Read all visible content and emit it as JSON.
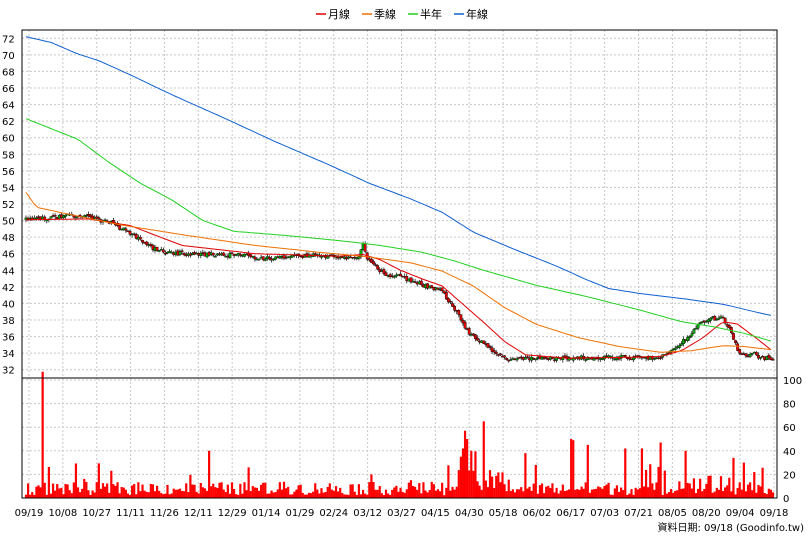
{
  "chart_data": {
    "type": "candlestick",
    "legend": {
      "placement": "top-center",
      "items": [
        {
          "label": "月線",
          "color": "#e00000"
        },
        {
          "label": "季線",
          "color": "#f07000"
        },
        {
          "label": "半年",
          "color": "#20d020"
        },
        {
          "label": "年線",
          "color": "#1060d0"
        }
      ]
    },
    "price_axis": {
      "range": [
        31,
        73
      ],
      "ticks": [
        32,
        34,
        36,
        38,
        40,
        42,
        44,
        46,
        48,
        50,
        52,
        54,
        56,
        58,
        60,
        62,
        64,
        66,
        68,
        70,
        72
      ],
      "side": "left"
    },
    "volume_axis": {
      "range": [
        0,
        100
      ],
      "ticks": [
        0,
        20,
        40,
        60,
        80,
        100
      ],
      "side": "right"
    },
    "x_ticks": [
      "09/19",
      "10/08",
      "10/27",
      "11/11",
      "11/26",
      "12/11",
      "12/29",
      "01/14",
      "01/29",
      "02/24",
      "03/12",
      "03/27",
      "04/15",
      "04/30",
      "05/18",
      "06/02",
      "06/17",
      "07/03",
      "07/21",
      "08/05",
      "08/20",
      "09/04",
      "09/18"
    ],
    "grid": true,
    "up_color": "#00b000",
    "down_color": "#e00000",
    "volume_color": "#ff0000",
    "footer": "資料日期: 09/18  (Goodinfo.tw)",
    "close_anchors": [
      [
        0,
        50.2
      ],
      [
        10,
        50.3
      ],
      [
        20,
        50.6
      ],
      [
        30,
        50.4
      ],
      [
        40,
        49.8
      ],
      [
        50,
        48.5
      ],
      [
        58,
        47.0
      ],
      [
        66,
        46.3
      ],
      [
        75,
        46.0
      ],
      [
        90,
        45.9
      ],
      [
        105,
        45.8
      ],
      [
        115,
        45.4
      ],
      [
        125,
        45.6
      ],
      [
        140,
        45.8
      ],
      [
        150,
        45.6
      ],
      [
        160,
        45.5
      ],
      [
        162,
        47.3
      ],
      [
        164,
        45.2
      ],
      [
        167,
        45.0
      ],
      [
        170,
        43.8
      ],
      [
        175,
        43.4
      ],
      [
        180,
        43.2
      ],
      [
        185,
        42.8
      ],
      [
        190,
        42.3
      ],
      [
        195,
        41.8
      ],
      [
        200,
        41.5
      ],
      [
        204,
        40.0
      ],
      [
        207,
        39.0
      ],
      [
        210,
        37.5
      ],
      [
        213,
        36.4
      ],
      [
        216,
        35.8
      ],
      [
        220,
        35.2
      ],
      [
        224,
        34.4
      ],
      [
        228,
        33.6
      ],
      [
        233,
        33.2
      ],
      [
        245,
        33.3
      ],
      [
        260,
        33.4
      ],
      [
        275,
        33.5
      ],
      [
        290,
        33.5
      ],
      [
        305,
        33.5
      ],
      [
        310,
        34.2
      ],
      [
        315,
        35.2
      ],
      [
        320,
        36.5
      ],
      [
        324,
        37.7
      ],
      [
        330,
        38.2
      ],
      [
        335,
        38.2
      ],
      [
        338,
        37.0
      ],
      [
        340,
        35.5
      ],
      [
        343,
        34.0
      ],
      [
        347,
        33.5
      ],
      [
        350,
        34.0
      ],
      [
        353,
        33.4
      ],
      [
        356,
        33.4
      ],
      [
        359,
        33.2
      ]
    ],
    "ma_month": [
      [
        0,
        50.1
      ],
      [
        30,
        50.2
      ],
      [
        50,
        49.4
      ],
      [
        75,
        47.0
      ],
      [
        110,
        46.0
      ],
      [
        150,
        45.7
      ],
      [
        162,
        45.9
      ],
      [
        170,
        45.3
      ],
      [
        180,
        44.0
      ],
      [
        190,
        43.0
      ],
      [
        200,
        42.1
      ],
      [
        210,
        39.9
      ],
      [
        220,
        37.7
      ],
      [
        230,
        35.4
      ],
      [
        240,
        33.8
      ],
      [
        260,
        33.4
      ],
      [
        290,
        33.5
      ],
      [
        305,
        33.6
      ],
      [
        315,
        34.3
      ],
      [
        325,
        35.8
      ],
      [
        335,
        37.8
      ],
      [
        342,
        37.5
      ],
      [
        350,
        36.0
      ],
      [
        359,
        34.2
      ]
    ],
    "ma_quarter": [
      [
        0,
        53.4
      ],
      [
        5,
        51.6
      ],
      [
        20,
        50.8
      ],
      [
        45,
        49.5
      ],
      [
        75,
        48.3
      ],
      [
        110,
        47.0
      ],
      [
        140,
        46.2
      ],
      [
        165,
        45.6
      ],
      [
        185,
        44.9
      ],
      [
        200,
        43.9
      ],
      [
        215,
        42.1
      ],
      [
        230,
        39.5
      ],
      [
        245,
        37.5
      ],
      [
        265,
        35.9
      ],
      [
        285,
        34.8
      ],
      [
        305,
        34.1
      ],
      [
        320,
        34.3
      ],
      [
        335,
        34.9
      ],
      [
        345,
        34.8
      ],
      [
        359,
        34.4
      ]
    ],
    "ma_half": [
      [
        0,
        62.3
      ],
      [
        10,
        61.3
      ],
      [
        25,
        59.8
      ],
      [
        40,
        57.0
      ],
      [
        55,
        54.5
      ],
      [
        70,
        52.5
      ],
      [
        85,
        50.0
      ],
      [
        100,
        48.7
      ],
      [
        125,
        48.2
      ],
      [
        150,
        47.6
      ],
      [
        170,
        47.0
      ],
      [
        190,
        46.2
      ],
      [
        205,
        45.2
      ],
      [
        220,
        44.0
      ],
      [
        245,
        42.2
      ],
      [
        270,
        40.8
      ],
      [
        295,
        39.2
      ],
      [
        315,
        37.8
      ],
      [
        330,
        37.2
      ],
      [
        345,
        36.4
      ],
      [
        359,
        35.4
      ]
    ],
    "ma_year": [
      [
        0,
        72.2
      ],
      [
        12,
        71.5
      ],
      [
        25,
        70.1
      ],
      [
        35,
        69.3
      ],
      [
        50,
        67.6
      ],
      [
        70,
        65.2
      ],
      [
        95,
        62.4
      ],
      [
        120,
        59.5
      ],
      [
        145,
        56.8
      ],
      [
        165,
        54.5
      ],
      [
        185,
        52.6
      ],
      [
        200,
        51.0
      ],
      [
        215,
        48.6
      ],
      [
        235,
        46.5
      ],
      [
        255,
        44.5
      ],
      [
        270,
        42.8
      ],
      [
        280,
        41.8
      ],
      [
        295,
        41.2
      ],
      [
        315,
        40.6
      ],
      [
        335,
        39.9
      ],
      [
        350,
        39.0
      ],
      [
        359,
        38.5
      ]
    ],
    "volume_spikes": [
      [
        8,
        107
      ],
      [
        88,
        40
      ],
      [
        166,
        20
      ],
      [
        209,
        35
      ],
      [
        210,
        42
      ],
      [
        211,
        57
      ],
      [
        212,
        50
      ],
      [
        214,
        40
      ],
      [
        220,
        65
      ],
      [
        240,
        38
      ],
      [
        262,
        50
      ],
      [
        263,
        49
      ],
      [
        270,
        45
      ],
      [
        288,
        42
      ],
      [
        296,
        42
      ],
      [
        305,
        47
      ],
      [
        317,
        40
      ],
      [
        340,
        34
      ],
      [
        345,
        30
      ],
      [
        350,
        22
      ],
      [
        358,
        7
      ]
    ]
  }
}
